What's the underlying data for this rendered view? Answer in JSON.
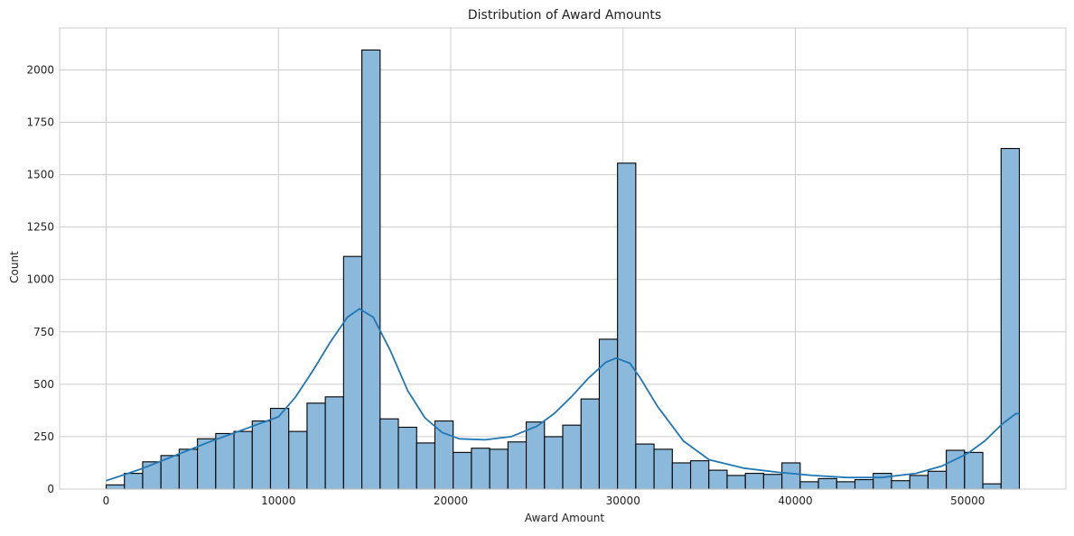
{
  "chart_data": {
    "type": "bar",
    "title": "Distribution of Award Amounts",
    "xlabel": "Award Amount",
    "ylabel": "Count",
    "xlim": [
      -2700,
      55700
    ],
    "ylim": [
      0,
      2200
    ],
    "x_ticks": [
      0,
      10000,
      20000,
      30000,
      40000,
      50000
    ],
    "x_tick_labels": [
      "0",
      "10000",
      "20000",
      "30000",
      "40000",
      "50000"
    ],
    "y_ticks": [
      0,
      250,
      500,
      750,
      1000,
      1250,
      1500,
      1750,
      2000
    ],
    "y_tick_labels": [
      "0",
      "250",
      "500",
      "750",
      "1000",
      "1250",
      "1500",
      "1750",
      "2000"
    ],
    "grid": true,
    "bins": {
      "start": 0,
      "end": 53000,
      "values": [
        20,
        75,
        130,
        160,
        190,
        240,
        265,
        275,
        325,
        385,
        275,
        410,
        440,
        1110,
        2095,
        335,
        295,
        220,
        325,
        175,
        195,
        190,
        225,
        320,
        250,
        305,
        430,
        715,
        1555,
        215,
        190,
        125,
        135,
        90,
        65,
        75,
        70,
        125,
        35,
        50,
        35,
        45,
        75,
        40,
        65,
        85,
        185,
        175,
        25,
        1625
      ]
    },
    "kde": {
      "x": [
        0,
        2000,
        4000,
        6000,
        8000,
        10000,
        11000,
        12000,
        13000,
        14000,
        14700,
        15500,
        16500,
        17500,
        18500,
        19500,
        20500,
        22000,
        23500,
        25000,
        26000,
        27000,
        28000,
        29000,
        29600,
        30400,
        31000,
        32000,
        33500,
        35000,
        37000,
        39000,
        41000,
        43000,
        45000,
        47000,
        48500,
        50000,
        51000,
        52000,
        52800,
        53000
      ],
      "y": [
        40,
        95,
        160,
        225,
        285,
        345,
        440,
        565,
        700,
        820,
        860,
        820,
        660,
        470,
        340,
        270,
        240,
        235,
        250,
        300,
        360,
        440,
        530,
        605,
        625,
        600,
        530,
        395,
        230,
        140,
        100,
        80,
        65,
        55,
        55,
        75,
        110,
        170,
        230,
        310,
        360,
        360
      ]
    },
    "colors": {
      "bar_fill": "#8ab9db",
      "bar_edge": "#000000",
      "kde_line": "#1f77b4",
      "grid": "#cccccc",
      "axes_edge": "#cccccc"
    }
  }
}
